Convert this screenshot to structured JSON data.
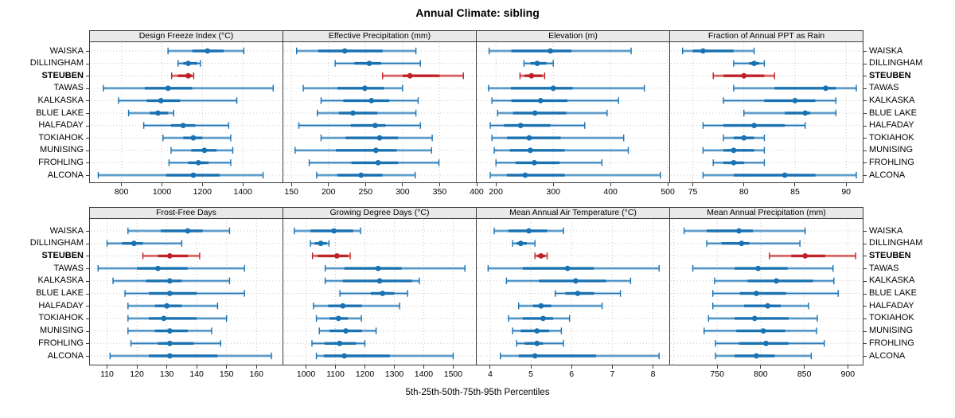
{
  "colors": {
    "blue": "#1a72b2",
    "blue_light": "#a5c8e1",
    "red": "#bf2226",
    "red_light": "#eca9a7",
    "grid": "#c4c4c4",
    "border": "#3a3a3a",
    "header_bg": "#e9e9e9"
  },
  "chart_data": {
    "type": "scatter",
    "variant": "percentile interval dot plot (line 5th-95th, thick band 25th-75th, dot 50th)",
    "title": "Annual Climate: sibling",
    "caption": "5th-25th-50th-75th-95th Percentiles",
    "percentile_order": [
      5,
      25,
      50,
      75,
      95
    ],
    "categories": [
      "WAISKA",
      "DILLINGHAM",
      "STEUBEN",
      "TAWAS",
      "KALKASKA",
      "BLUE LAKE",
      "HALFADAY",
      "TOKIAHOK",
      "MUNISING",
      "FROHLING",
      "ALCONA"
    ],
    "highlight_category": "STEUBEN",
    "layout": {
      "rows": 2,
      "cols": 4,
      "legend": "none",
      "grid": "dotted",
      "row_labels": "both-sides"
    },
    "panels": [
      {
        "title": "Design Freeze Index (°C)",
        "xlim": [
          640,
          1600
        ],
        "ticks": [
          800,
          1000,
          1200,
          1400
        ],
        "values": [
          [
            1030,
            1150,
            1225,
            1305,
            1405
          ],
          [
            1080,
            1105,
            1130,
            1175,
            1190
          ],
          [
            1048,
            1078,
            1130,
            1150,
            1157
          ],
          [
            710,
            915,
            1030,
            1150,
            1550
          ],
          [
            785,
            925,
            995,
            1090,
            1370
          ],
          [
            835,
            940,
            980,
            1030,
            1058
          ],
          [
            910,
            1045,
            1105,
            1165,
            1330
          ],
          [
            1005,
            1105,
            1155,
            1200,
            1340
          ],
          [
            1045,
            1145,
            1210,
            1270,
            1350
          ],
          [
            1035,
            1130,
            1180,
            1230,
            1340
          ],
          [
            685,
            1020,
            1155,
            1285,
            1500
          ]
        ]
      },
      {
        "title": "Effective Precipitation (mm)",
        "xlim": [
          138,
          400
        ],
        "ticks": [
          150,
          200,
          250,
          300,
          350,
          400
        ],
        "values": [
          [
            157,
            186,
            222,
            273,
            318
          ],
          [
            209,
            235,
            255,
            271,
            324
          ],
          [
            273,
            300,
            310,
            350,
            382
          ],
          [
            166,
            212,
            249,
            275,
            300
          ],
          [
            190,
            220,
            258,
            282,
            321
          ],
          [
            185,
            214,
            233,
            266,
            318
          ],
          [
            160,
            230,
            263,
            277,
            324
          ],
          [
            190,
            223,
            269,
            294,
            340
          ],
          [
            155,
            210,
            264,
            292,
            339
          ],
          [
            174,
            231,
            267,
            294,
            349
          ],
          [
            184,
            212,
            244,
            273,
            317
          ]
        ]
      },
      {
        "title": "Elevation (m)",
        "xlim": [
          165,
          504
        ],
        "ticks": [
          200,
          300,
          400,
          500
        ],
        "values": [
          [
            188,
            227,
            295,
            332,
            436
          ],
          [
            249,
            260,
            272,
            288,
            300
          ],
          [
            242,
            250,
            262,
            281,
            285
          ],
          [
            187,
            226,
            300,
            334,
            459
          ],
          [
            193,
            227,
            278,
            325,
            414
          ],
          [
            203,
            230,
            268,
            323,
            394
          ],
          [
            190,
            214,
            243,
            295,
            355
          ],
          [
            193,
            219,
            258,
            313,
            423
          ],
          [
            197,
            224,
            260,
            320,
            431
          ],
          [
            200,
            234,
            267,
            311,
            385
          ],
          [
            190,
            219,
            251,
            320,
            487
          ]
        ]
      },
      {
        "title": "Fraction of Annual PPT as Rain",
        "xlim": [
          72.7,
          91.7
        ],
        "ticks": [
          75,
          80,
          85,
          90
        ],
        "values": [
          [
            74,
            75,
            76,
            79,
            81
          ],
          [
            79,
            80.5,
            81,
            81.5,
            82
          ],
          [
            77,
            78,
            80,
            82,
            83
          ],
          [
            79,
            83,
            88,
            89,
            91
          ],
          [
            78,
            82,
            85,
            87,
            89
          ],
          [
            80,
            84,
            86,
            86.5,
            89
          ],
          [
            76,
            78,
            81,
            84,
            86
          ],
          [
            78,
            79,
            80,
            81,
            82
          ],
          [
            76,
            78,
            79,
            81,
            82
          ],
          [
            77,
            78,
            79,
            80,
            82
          ],
          [
            76,
            79,
            84,
            87,
            91
          ]
        ]
      },
      {
        "title": "Frost-Free Days",
        "xlim": [
          104,
          169
        ],
        "ticks": [
          110,
          120,
          130,
          140,
          150,
          160
        ],
        "values": [
          [
            117,
            128,
            137,
            142,
            151
          ],
          [
            110,
            115,
            119,
            122,
            135
          ],
          [
            122,
            127,
            131,
            137,
            141
          ],
          [
            107,
            120,
            127,
            137,
            156
          ],
          [
            112,
            123,
            131,
            135,
            151
          ],
          [
            116,
            124,
            131,
            140,
            156
          ],
          [
            117,
            126,
            130,
            135,
            147
          ],
          [
            117,
            124,
            129,
            140,
            150
          ],
          [
            117,
            126,
            131,
            137,
            145
          ],
          [
            118,
            127,
            131,
            139,
            148
          ],
          [
            111,
            124,
            131,
            147,
            165
          ]
        ]
      },
      {
        "title": "Growing Degree Days (°C)",
        "xlim": [
          920,
          1580
        ],
        "ticks": [
          1000,
          1100,
          1200,
          1300,
          1400,
          1500
        ],
        "values": [
          [
            960,
            1015,
            1095,
            1160,
            1185
          ],
          [
            1015,
            1030,
            1050,
            1070,
            1078
          ],
          [
            1022,
            1040,
            1105,
            1143,
            1150
          ],
          [
            1065,
            1130,
            1245,
            1325,
            1540
          ],
          [
            1065,
            1125,
            1250,
            1360,
            1385
          ],
          [
            1115,
            1220,
            1260,
            1300,
            1345
          ],
          [
            1025,
            1075,
            1125,
            1190,
            1318
          ],
          [
            1035,
            1080,
            1110,
            1142,
            1188
          ],
          [
            1045,
            1080,
            1135,
            1190,
            1238
          ],
          [
            1020,
            1063,
            1114,
            1170,
            1200
          ],
          [
            1035,
            1060,
            1130,
            1285,
            1500
          ]
        ]
      },
      {
        "title": "Mean Annual Air Temperature (°C)",
        "xlim": [
          3.65,
          8.42
        ],
        "ticks": [
          4,
          5,
          6,
          7,
          8
        ],
        "values": [
          [
            4.1,
            4.45,
            4.95,
            5.4,
            5.8
          ],
          [
            4.55,
            4.65,
            4.75,
            4.9,
            5.1
          ],
          [
            5.1,
            5.15,
            5.25,
            5.35,
            5.4
          ],
          [
            3.95,
            4.8,
            5.9,
            6.55,
            8.15
          ],
          [
            4.4,
            5.2,
            6.1,
            6.85,
            7.45
          ],
          [
            5.6,
            5.85,
            6.15,
            6.55,
            7.2
          ],
          [
            4.7,
            5.05,
            5.25,
            5.5,
            6.75
          ],
          [
            4.45,
            4.8,
            5.3,
            5.55,
            5.95
          ],
          [
            4.55,
            4.75,
            5.15,
            5.45,
            5.75
          ],
          [
            4.65,
            4.85,
            5.15,
            5.3,
            5.8
          ],
          [
            4.25,
            4.7,
            5.1,
            6.6,
            8.15
          ]
        ]
      },
      {
        "title": "Mean Annual Precipitation (mm)",
        "xlim": [
          695,
          918
        ],
        "ticks": [
          750,
          800,
          850,
          900
        ],
        "gridlines": [
          700,
          750,
          800,
          850,
          900
        ],
        "values": [
          [
            712,
            738,
            775,
            791,
            851
          ],
          [
            738,
            755,
            778,
            787,
            845
          ],
          [
            810,
            835,
            851,
            874,
            909
          ],
          [
            722,
            770,
            797,
            831,
            883
          ],
          [
            747,
            785,
            818,
            860,
            884
          ],
          [
            745,
            776,
            795,
            829,
            889
          ],
          [
            745,
            781,
            808,
            823,
            855
          ],
          [
            740,
            770,
            793,
            832,
            865
          ],
          [
            735,
            772,
            803,
            828,
            864
          ],
          [
            748,
            775,
            806,
            832,
            873
          ],
          [
            748,
            770,
            795,
            816,
            858
          ]
        ]
      }
    ]
  }
}
